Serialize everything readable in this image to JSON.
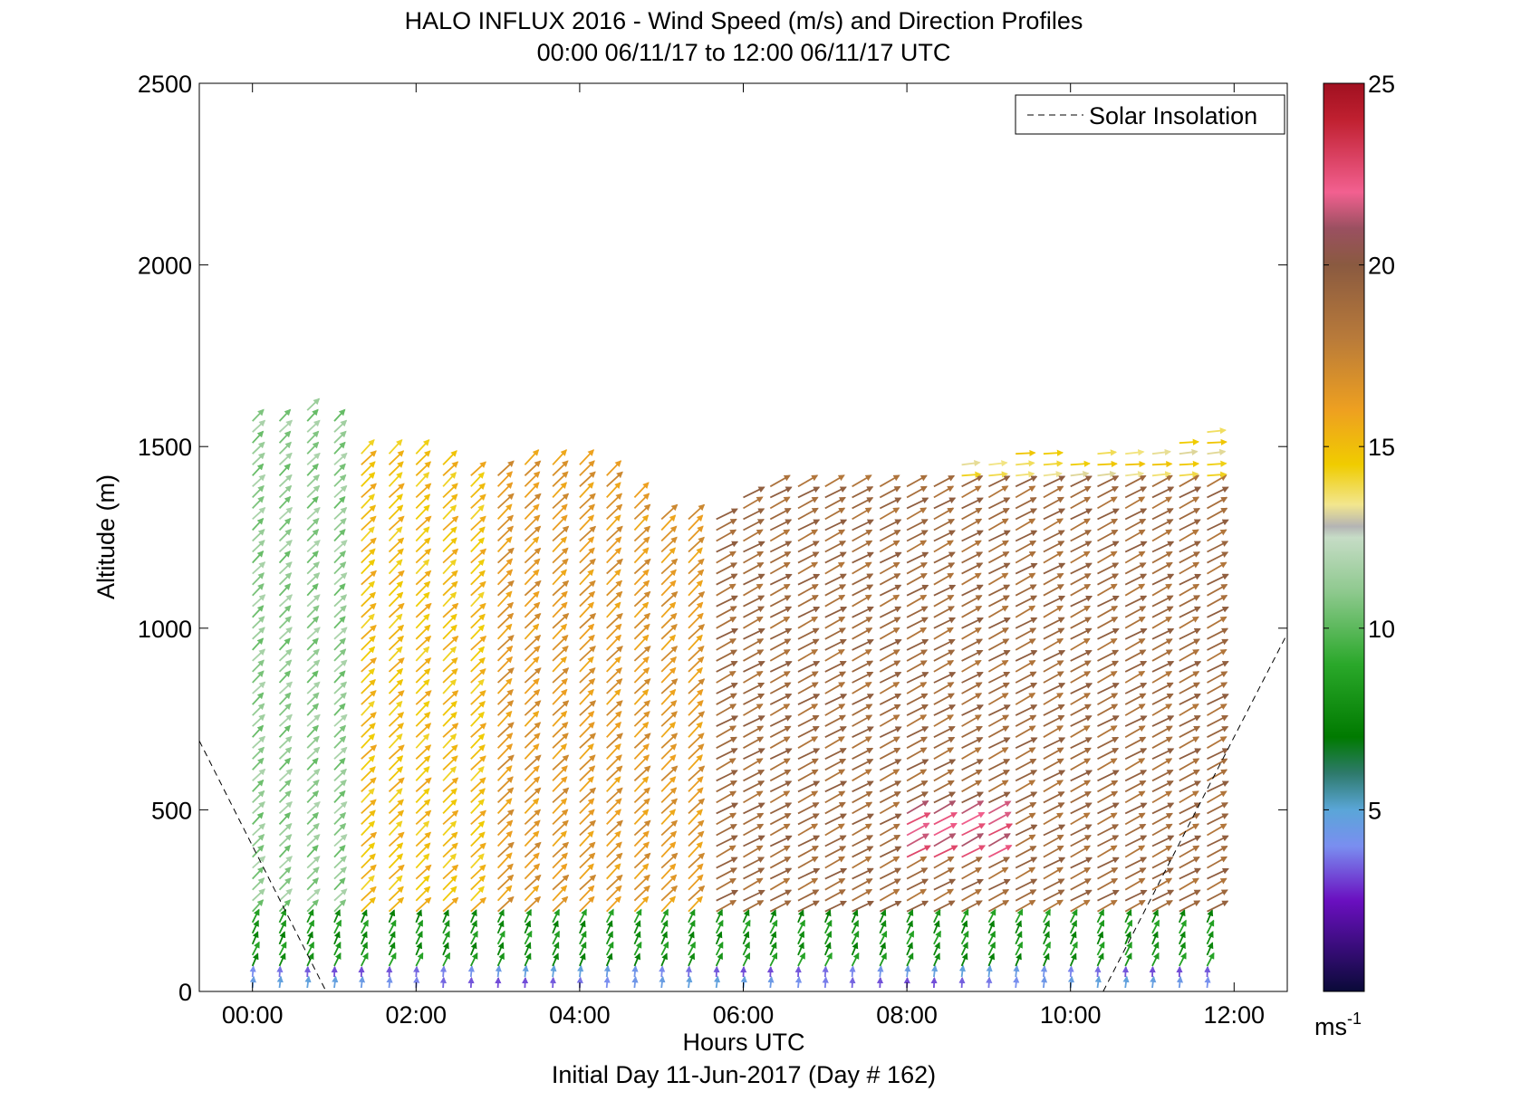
{
  "chart_data": {
    "type": "wind-barb-profile",
    "title": "HALO INFLUX 2016 - Wind Speed (m/s) and Direction Profiles",
    "subtitle": "00:00 06/11/17 to 12:00 06/11/17  UTC",
    "xlabel": "Hours UTC",
    "ylabel": "Altitude (m)",
    "footer": "Initial Day 11-Jun-2017 (Day # 162)",
    "x_range_hours": [
      -0.65,
      12.65
    ],
    "xticks": [
      {
        "v": 0,
        "label": "00:00"
      },
      {
        "v": 2,
        "label": "02:00"
      },
      {
        "v": 4,
        "label": "04:00"
      },
      {
        "v": 6,
        "label": "06:00"
      },
      {
        "v": 8,
        "label": "08:00"
      },
      {
        "v": 10,
        "label": "10:00"
      },
      {
        "v": 12,
        "label": "12:00"
      }
    ],
    "ylim": [
      0,
      2500
    ],
    "yticks": [
      {
        "v": 0,
        "label": "0"
      },
      {
        "v": 500,
        "label": "500"
      },
      {
        "v": 1000,
        "label": "1000"
      },
      {
        "v": 1500,
        "label": "1500"
      },
      {
        "v": 2000,
        "label": "2000"
      },
      {
        "v": 2500,
        "label": "2500"
      }
    ],
    "legend": {
      "label": "Solar Insolation",
      "style": "dashed",
      "placement": "top-right"
    },
    "colorbar": {
      "range": [
        0,
        25
      ],
      "ticks": [
        {
          "v": 5,
          "label": "5"
        },
        {
          "v": 10,
          "label": "10"
        },
        {
          "v": 15,
          "label": "15"
        },
        {
          "v": 20,
          "label": "20"
        },
        {
          "v": 25,
          "label": "25"
        }
      ],
      "unit": "ms",
      "unit_exp": "-1",
      "stops": [
        {
          "v": 0,
          "c": "#0a0a38"
        },
        {
          "v": 2.5,
          "c": "#6a0fc0"
        },
        {
          "v": 4,
          "c": "#7a8ef0"
        },
        {
          "v": 5,
          "c": "#5aa6d8"
        },
        {
          "v": 6,
          "c": "#2e7a6c"
        },
        {
          "v": 7,
          "c": "#007a00"
        },
        {
          "v": 9,
          "c": "#2aa82a"
        },
        {
          "v": 11,
          "c": "#8ec98e"
        },
        {
          "v": 12.5,
          "c": "#c6dcc6"
        },
        {
          "v": 12.8,
          "c": "#b4b4b4"
        },
        {
          "v": 13.4,
          "c": "#f2e68e"
        },
        {
          "v": 14.5,
          "c": "#f0cc00"
        },
        {
          "v": 16,
          "c": "#eea020"
        },
        {
          "v": 18,
          "c": "#b87a3a"
        },
        {
          "v": 20,
          "c": "#8a5a40"
        },
        {
          "v": 21,
          "c": "#9a5060"
        },
        {
          "v": 22,
          "c": "#f26090"
        },
        {
          "v": 24,
          "c": "#c02030"
        },
        {
          "v": 25,
          "c": "#a01020"
        }
      ]
    },
    "profile_times_hours": [
      0,
      0.33,
      0.67,
      1,
      1.33,
      1.67,
      2,
      2.33,
      2.67,
      3,
      3.33,
      3.67,
      4,
      4.33,
      4.67,
      5,
      5.33,
      5.67,
      6,
      6.33,
      6.67,
      7,
      7.33,
      7.67,
      8,
      8.33,
      8.67,
      9,
      9.33,
      9.67,
      10,
      10.33,
      10.67,
      11,
      11.33,
      11.67
    ],
    "profile_top_altitude_m": [
      1580,
      1580,
      1620,
      1580,
      1540,
      1520,
      1480,
      1460,
      1440,
      1440,
      1460,
      1480,
      1500,
      1420,
      1380,
      1300,
      1300,
      1320,
      1360,
      1400,
      1420,
      1420,
      1420,
      1420,
      1420,
      1420,
      1460,
      1460,
      1480,
      1480,
      1470,
      1480,
      1480,
      1500,
      1520,
      1540
    ],
    "altitude_spacing_m": 30,
    "wind_field": [
      {
        "t_range": [
          0,
          1.2
        ],
        "alt_range": [
          200,
          1600
        ],
        "speed_ms": 11,
        "dir": "from southwest"
      },
      {
        "t_range": [
          1.2,
          3.0
        ],
        "alt_range": [
          200,
          1500
        ],
        "speed_ms": 15,
        "dir": "from southwest"
      },
      {
        "t_range": [
          3.0,
          5.5
        ],
        "alt_range": [
          200,
          1450
        ],
        "speed_ms": 16.5,
        "dir": "from southwest"
      },
      {
        "t_range": [
          5.5,
          11.8
        ],
        "alt_range": [
          200,
          1400
        ],
        "speed_ms": 19,
        "dir": "from west-southwest"
      },
      {
        "t_range": [
          8.0,
          9.0
        ],
        "alt_range": [
          350,
          500
        ],
        "speed_ms": 22,
        "dir": "from west-southwest"
      },
      {
        "t_range": [
          8.5,
          11.8
        ],
        "alt_range": [
          1400,
          1550
        ],
        "speed_ms": 14,
        "dir": "from west"
      },
      {
        "t_range": [
          0,
          11.8
        ],
        "alt_range": [
          0,
          200
        ],
        "speed_ms": 8,
        "dir": "from south-southwest"
      },
      {
        "t_range": [
          0,
          11.8
        ],
        "alt_range": [
          0,
          40
        ],
        "speed_ms": 4,
        "dir": "from south"
      }
    ],
    "solar_insolation_line": [
      {
        "t": -0.65,
        "alt": 690
      },
      {
        "t": 0.9,
        "alt": 0
      },
      {
        "t": 10.4,
        "alt": 0
      },
      {
        "t": 12.65,
        "alt": 985
      }
    ]
  }
}
